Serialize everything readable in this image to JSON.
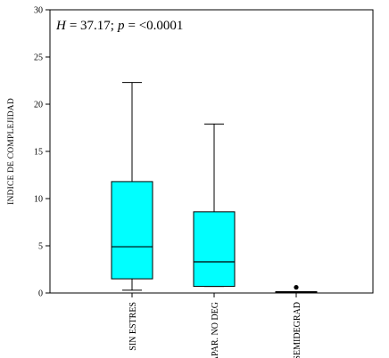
{
  "chart_data": {
    "type": "boxplot",
    "title": "",
    "ylabel": "INDICE DE COMPLEJIDAD",
    "xlabel": "",
    "ylim": [
      0,
      30
    ],
    "yticks": [
      0,
      5,
      10,
      15,
      20,
      25,
      30
    ],
    "grid": false,
    "annotation": {
      "h_label": "H",
      "h_value": "= 37.17;",
      "p_label": "p",
      "p_value": "= <0.0001"
    },
    "box_color": "#00FFFF",
    "categories": [
      "SIN ESTRES",
      "APAR. NO DEG",
      "SEMIDEGRAD"
    ],
    "boxes": [
      {
        "min": 0.3,
        "q1": 1.5,
        "median": 4.9,
        "q3": 11.8,
        "max": 22.3,
        "outliers": []
      },
      {
        "min": 0.7,
        "q1": 0.7,
        "median": 3.3,
        "q3": 8.6,
        "max": 17.9,
        "outliers": []
      },
      {
        "min": 0.0,
        "q1": 0.0,
        "median": 0.05,
        "q3": 0.1,
        "max": 0.1,
        "outliers": [
          0.6
        ]
      }
    ]
  }
}
